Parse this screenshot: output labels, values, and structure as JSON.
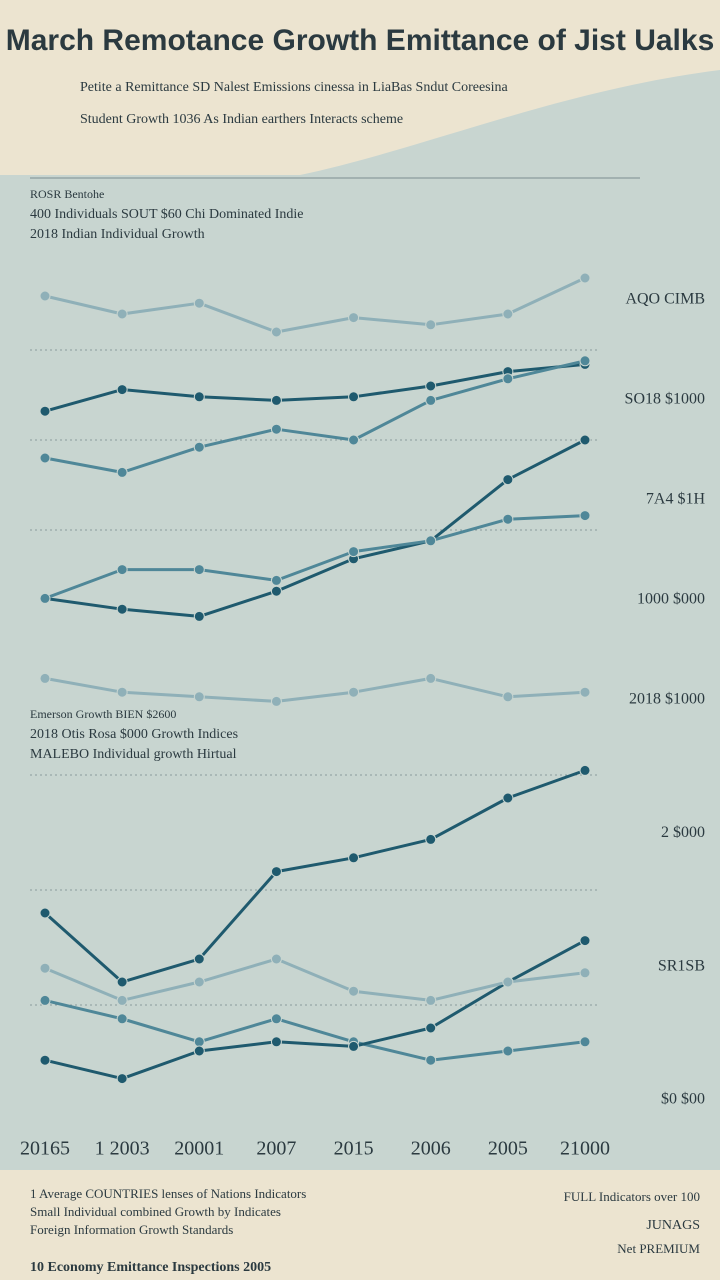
{
  "header": {
    "title": "March Remotance Growth Emittance of Jist Ualks",
    "subtitle": [
      "Petite a Remittance SD Nalest Emissions cinessa in LiaBas Sndut Coreesina",
      "Student Growth 1036 As Indian earthers Interacts scheme"
    ]
  },
  "chart_data": [
    {
      "type": "line",
      "notes": [
        "ROSR Bentohe",
        "400 Individuals SOUT $60 Chi Dominated Indie",
        "2018 Indian Individual Growth"
      ],
      "categories": [
        null,
        null,
        null,
        null,
        null,
        null,
        null,
        null
      ],
      "ylim": [
        0,
        100
      ],
      "series": [
        {
          "color": "#8fb0b8",
          "values": [
            90,
            85,
            88,
            80,
            84,
            82,
            85,
            95
          ]
        },
        {
          "color": "#1f5a6e",
          "values": [
            58,
            64,
            62,
            61,
            62,
            65,
            69,
            71
          ]
        },
        {
          "color": "#4f8798",
          "values": [
            45,
            41,
            48,
            53,
            50,
            61,
            67,
            72
          ]
        },
        {
          "color": "#1f5a6e",
          "values": [
            6,
            3,
            1,
            8,
            17,
            22,
            39,
            50
          ]
        },
        {
          "color": "#4f8798",
          "values": [
            6,
            14,
            14,
            11,
            19,
            22,
            28,
            29
          ]
        }
      ],
      "annotations": [
        "AQO CIMB",
        "SO18 $1000",
        "7A4 $1H",
        "1000 $000"
      ]
    },
    {
      "type": "line",
      "notes": [
        "Emerson Growth BIEN $2600",
        "2018 Otis Rosa $000 Growth Indices",
        "MALEBO Individual growth Hirtual"
      ],
      "categories": [
        "20165",
        "1 2003",
        "20001",
        "2007",
        "2015",
        "2006",
        "2005",
        "21000"
      ],
      "ylim": [
        0,
        100
      ],
      "series": [
        {
          "color": "#8fb0b8",
          "values": [
            96,
            93,
            92,
            91,
            93,
            96,
            92,
            93
          ]
        },
        {
          "color": "#1f5a6e",
          "values": [
            45,
            30,
            35,
            54,
            57,
            61,
            70,
            76
          ]
        },
        {
          "color": "#4f8798",
          "values": [
            26,
            22,
            17,
            22,
            17,
            13,
            15,
            17
          ]
        },
        {
          "color": "#1f5a6e",
          "values": [
            13,
            9,
            15,
            17,
            16,
            20,
            30,
            39
          ]
        },
        {
          "color": "#8fb0b8",
          "values": [
            33,
            26,
            30,
            35,
            28,
            26,
            30,
            32
          ]
        }
      ],
      "annotations": [
        "2018 $1000",
        "2 $000",
        "SR1SB",
        "$0 $00"
      ]
    }
  ],
  "footer": {
    "left": [
      "1 Average COUNTRIES lenses of Nations Indicators",
      "Small Individual combined Growth by Indicates",
      "Foreign Information Growth Standards"
    ],
    "bottom": "10 Economy Emittance Inspections 2005",
    "right": [
      "FULL Indicators over 100",
      "JUNAGS",
      "Net PREMIUM"
    ]
  }
}
